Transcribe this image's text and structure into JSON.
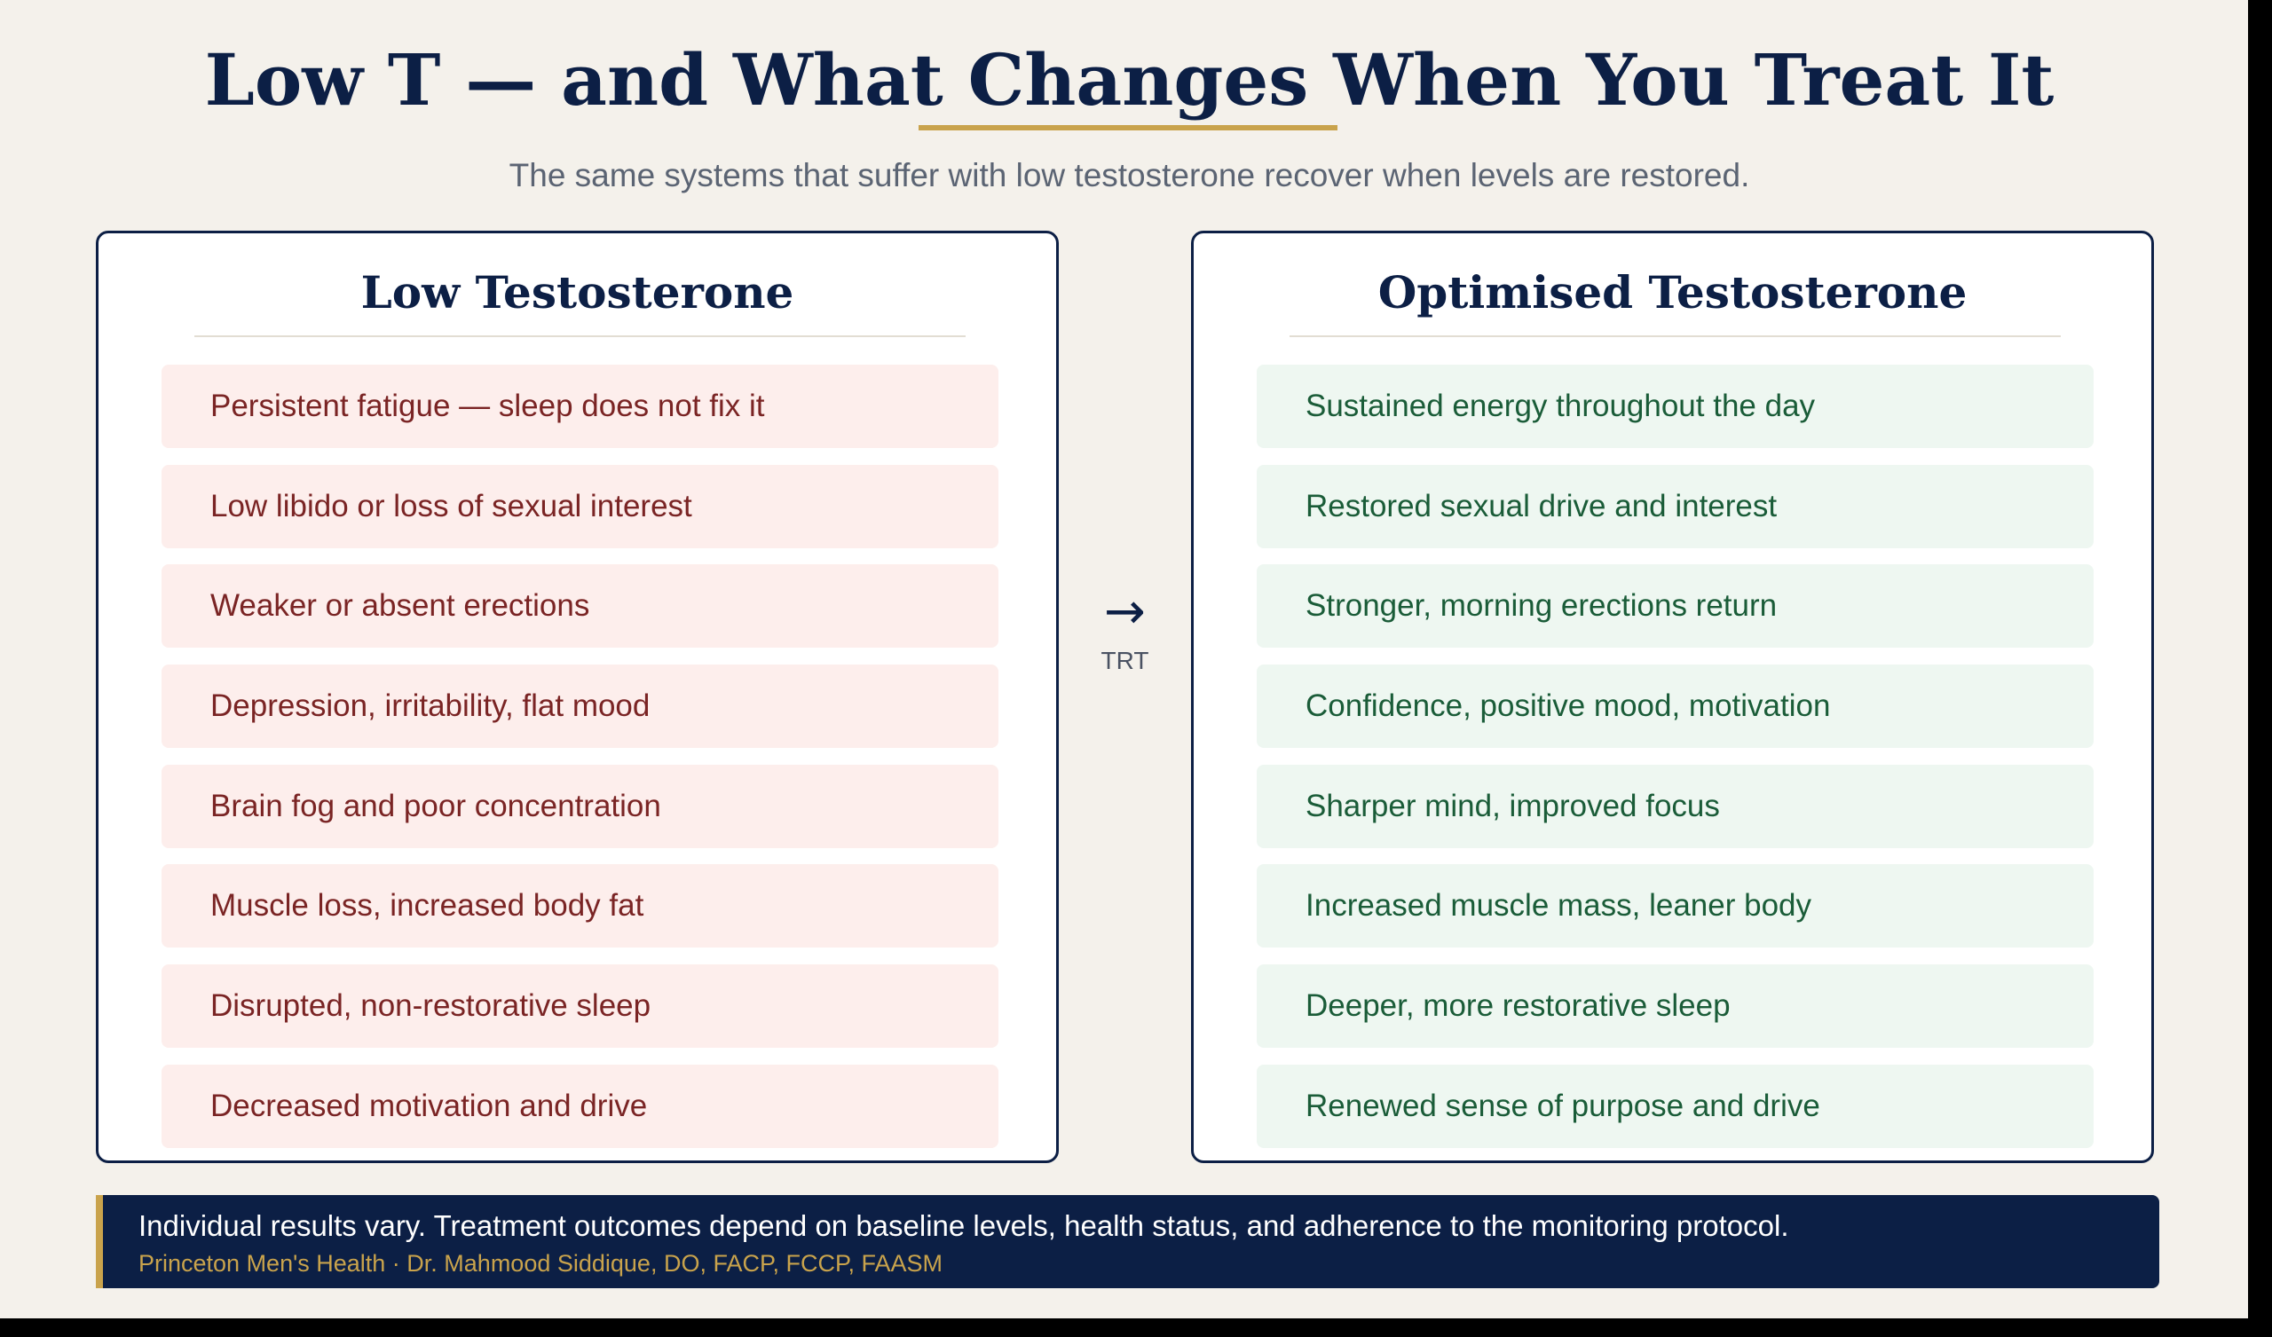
{
  "header": {
    "title": "Low T — and What Changes When You Treat It",
    "subtitle": "The same systems that suffer with low testosterone recover when levels are restored."
  },
  "colors": {
    "navy": "#0c1f45",
    "gold_accent": "#c9a34c",
    "low_item_bg": "#fdeeec",
    "low_item_text": "#7a2424",
    "optimised_item_bg": "#eef7f1",
    "optimised_item_text": "#1a5c38"
  },
  "low_panel": {
    "heading": "Low Testosterone",
    "items": [
      "Persistent fatigue — sleep does not fix it",
      "Low libido or loss of sexual interest",
      "Weaker or absent erections",
      "Depression, irritability, flat mood",
      "Brain fog and poor concentration",
      "Muscle loss, increased body fat",
      "Disrupted, non-restorative sleep",
      "Decreased motivation and drive"
    ]
  },
  "transition": {
    "icon": "right-arrow-icon",
    "arrow": "→",
    "label": "TRT"
  },
  "optimised_panel": {
    "heading": "Optimised Testosterone",
    "items": [
      "Sustained energy throughout the day",
      "Restored sexual drive and interest",
      "Stronger, morning erections return",
      "Confidence, positive mood, motivation",
      "Sharper mind, improved focus",
      "Increased muscle mass, leaner body",
      "Deeper, more restorative sleep",
      "Renewed sense of purpose and drive"
    ]
  },
  "footer": {
    "disclaimer": "Individual results vary. Treatment outcomes depend on baseline levels, health status, and adherence to the monitoring protocol.",
    "credit": "Princeton Men's Health · Dr. Mahmood Siddique, DO, FACP, FCCP, FAASM"
  }
}
